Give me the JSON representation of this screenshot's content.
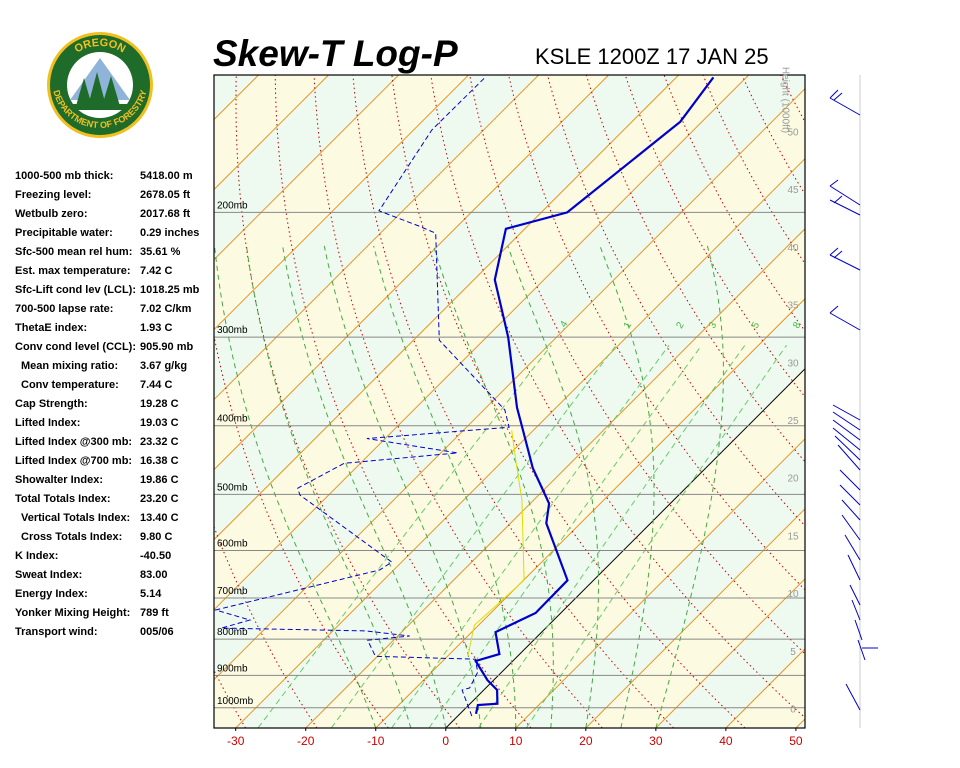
{
  "header": {
    "title": "Skew-T Log-P",
    "subtitle": "KSLE 1200Z 17 JAN 25"
  },
  "logo": {
    "top": "OREGON",
    "bottom": "DEPARTMENT OF FORESTRY"
  },
  "indices": [
    {
      "label": "1000-500 mb thick:",
      "value": "5418.00 m"
    },
    {
      "label": "Freezing level:",
      "value": "2678.05 ft"
    },
    {
      "label": "Wetbulb zero:",
      "value": "2017.68 ft"
    },
    {
      "label": "Precipitable water:",
      "value": "0.29 inches"
    },
    {
      "label": "Sfc-500 mean rel hum:",
      "value": "35.61 %"
    },
    {
      "label": "Est. max temperature:",
      "value": "7.42 C"
    },
    {
      "label": "Sfc-Lift cond lev (LCL):",
      "value": "1018.25 mb"
    },
    {
      "label": "700-500 lapse rate:",
      "value": "7.02 C/km"
    },
    {
      "label": "ThetaE index:",
      "value": "1.93 C"
    },
    {
      "label": "Conv cond level (CCL):",
      "value": "905.90 mb"
    },
    {
      "label": "Mean mixing ratio:",
      "value": "3.67 g/kg"
    },
    {
      "label": "Conv temperature:",
      "value": "7.44 C"
    },
    {
      "label": "Cap Strength:",
      "value": "19.28 C"
    },
    {
      "label": "Lifted Index:",
      "value": "19.03 C"
    },
    {
      "label": "Lifted Index @300 mb:",
      "value": "23.32 C"
    },
    {
      "label": "Lifted Index @700 mb:",
      "value": "16.38 C"
    },
    {
      "label": "Showalter Index:",
      "value": "19.86 C"
    },
    {
      "label": "Total Totals Index:",
      "value": "23.20 C"
    },
    {
      "label": "Vertical Totals Index:",
      "value": "13.40 C"
    },
    {
      "label": "Cross Totals Index:",
      "value": "9.80 C"
    },
    {
      "label": "K Index:",
      "value": "-40.50"
    },
    {
      "label": "Sweat Index:",
      "value": "83.00"
    },
    {
      "label": "Energy Index:",
      "value": "5.14"
    },
    {
      "label": "Yonker Mixing Height:",
      "value": "789 ft"
    },
    {
      "label": "Transport wind:",
      "value": "005/06"
    }
  ],
  "chart_data": {
    "type": "skewt",
    "xlim": [
      -33.1,
      51.3
    ],
    "xticks": [
      -30,
      -20,
      -10,
      0,
      10,
      20,
      30,
      40,
      50
    ],
    "ylim": [
      1068,
      128
    ],
    "yscale": "log",
    "yticks": [
      {
        "value": 1000,
        "label": "1000mb"
      },
      {
        "value": 900,
        "label": "900mb"
      },
      {
        "value": 800,
        "label": "800mb"
      },
      {
        "value": 700,
        "label": "700mb"
      },
      {
        "value": 600,
        "label": "600mb"
      },
      {
        "value": 500,
        "label": "500mb"
      },
      {
        "value": 400,
        "label": "400mb"
      },
      {
        "value": 300,
        "label": "300mb"
      },
      {
        "value": 200,
        "label": "200mb"
      }
    ],
    "y2label": "Height (1000ft)",
    "y2lim": [
      -1.56,
      55.0
    ],
    "y2ticks": [
      0,
      5,
      10,
      15,
      20,
      25,
      30,
      35,
      40,
      45,
      50
    ],
    "mixing_ratios": [
      {
        "value": 0.4,
        "label": ".4"
      },
      1,
      2,
      3,
      5,
      8
    ],
    "series": [
      {
        "color": "#0000cc",
        "pressure": [
          1020,
          991,
          987,
          944,
          914,
          859,
          840,
          782,
          735,
          661,
          549,
          515,
          459,
          403,
          377,
          300,
          249,
          211,
          200,
          149,
          129
        ],
        "values": [
          2.3,
          1.3,
          3.9,
          1.9,
          -0.9,
          -5.3,
          -2.9,
          -6.6,
          -3.6,
          -3.7,
          -14.9,
          -17.3,
          -24.7,
          -31.9,
          -35.6,
          -46.9,
          -57,
          -62.7,
          -56.3,
          -53.1,
          -54.7
        ]
      },
      {
        "color": "#0000cc",
        "pressure": [
          1027,
          944,
          938,
          891,
          854,
          846,
          803,
          792,
          779,
          772,
          752,
          728,
          639,
          623,
          501,
          490,
          452,
          437,
          417,
          402,
          380,
          303,
          214,
          209,
          199,
          153,
          129
        ],
        "values": [
          2.0,
          -3.1,
          -2.3,
          -3.4,
          -5.6,
          -20.3,
          -23.7,
          -18.3,
          -25.3,
          -46.3,
          -43.4,
          -49.7,
          -32,
          -31.4,
          -54.1,
          -55.4,
          -52.3,
          -37.6,
          -52.6,
          -33.9,
          -37,
          -56.3,
          -72.1,
          -75.6,
          -83.4,
          -87.4,
          -87.3
        ]
      },
      {
        "color": "#dddd00",
        "pressure": [
          846,
          765,
          661,
          509,
          447,
          406
        ],
        "values": [
          -7.1,
          -10.6,
          -9.9,
          -21.7,
          -28.3,
          -33.1
        ]
      }
    ]
  }
}
